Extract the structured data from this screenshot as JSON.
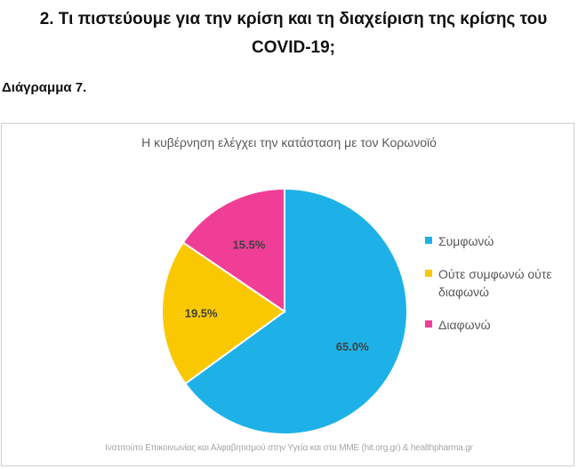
{
  "header": {
    "title": "2. Τι πιστεύουμε για την κρίση και τη διαχείριση της κρίσης του COVID-19;",
    "subtitle": "Διάγραμμα 7."
  },
  "chart_data": {
    "type": "pie",
    "title": "Η κυβέρνηση ελέγχει την κατάσταση με τον Κορωνοϊό",
    "categories": [
      "Συμφωνώ",
      "Ούτε συμφωνώ ούτε διαφωνώ",
      "Διαφωνώ"
    ],
    "values": [
      65.0,
      19.5,
      15.5
    ],
    "value_labels": [
      "65.0%",
      "19.5%",
      "15.5%"
    ],
    "colors": [
      "#1eb1e8",
      "#f9c800",
      "#f03e96"
    ],
    "legend_position": "right",
    "start_angle_deg": 0,
    "direction": "clockwise"
  },
  "footer": {
    "source": "Ινστιτούτο Επικοινωνίας και Αλφαβητισμού στην Υγεία και στα ΜΜΕ (hit.org.gr) & healthpharma.gr"
  }
}
